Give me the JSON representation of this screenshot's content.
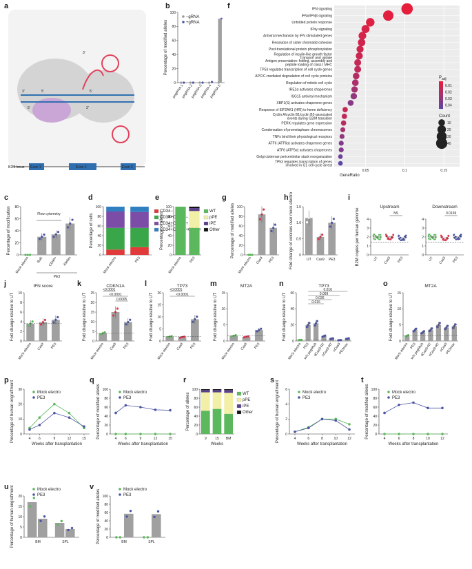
{
  "panel_letters": [
    "a",
    "b",
    "c",
    "d",
    "e",
    "f",
    "g",
    "h",
    "i",
    "j",
    "k",
    "l",
    "m",
    "n",
    "o",
    "p",
    "q",
    "r",
    "s",
    "t",
    "u",
    "v"
  ],
  "colors": {
    "mock": "#5cb85c",
    "pe3": "#4b55a3",
    "cas9": "#d9344b",
    "bar": "#a0a0a0",
    "wt": "#5cb85c",
    "ppe": "#f2f0a6",
    "ipe": "#5b3f8c",
    "other": "#111111",
    "cd34neg": "#e03a3a",
    "cd34133neg": "#3aa64a",
    "cd34133": "#7b4da6",
    "cd34133_90": "#2f7fc1"
  },
  "diagram_a": {
    "locus_label": "B2M locus",
    "exons": [
      "Exon 1",
      "Exon 2",
      "Exon 3"
    ],
    "strand_labels": [
      "3'",
      "5'",
      "3'",
      "5'",
      "3'",
      "5'"
    ]
  },
  "chart_data": [
    {
      "id": "b",
      "type": "scatter",
      "ylabel": "Percentage of modified alleles",
      "categories": [
        "pegRNA 1",
        "pegRNA 2",
        "pegRNA 3",
        "pegRNA 4",
        "pegRNA 5"
      ],
      "series": [
        {
          "name": "–gRNA",
          "values": [
            0,
            0,
            0,
            0,
            0
          ]
        },
        {
          "name": "+gRNA",
          "values": [
            0,
            0,
            0,
            1,
            91
          ]
        }
      ],
      "yticks": [
        0,
        20,
        40,
        60,
        80,
        100
      ],
      "ylim": [
        0,
        100
      ],
      "legend": "top-left"
    },
    {
      "id": "c",
      "type": "bar",
      "ylabel": "Percentage of modification",
      "categories": [
        "Mock electro",
        "Bulk",
        "CD90+",
        "Alleles"
      ],
      "values": [
        0,
        30,
        34,
        52
      ],
      "ylim": [
        0,
        80
      ],
      "yticks": [
        0,
        20,
        40,
        60,
        80
      ],
      "group_label": "PE3",
      "annotation": "Flow cytometry"
    },
    {
      "id": "d",
      "type": "bar",
      "stacked": true,
      "ylabel": "Percentage of cells",
      "categories": [
        "Mock electro",
        "PE3"
      ],
      "series": [
        {
          "name": "CD34−",
          "values": [
            11,
            16
          ]
        },
        {
          "name": "CD34+CD133−",
          "values": [
            45,
            40
          ]
        },
        {
          "name": "CD34+CD133+",
          "values": [
            34,
            33
          ]
        },
        {
          "name": "CD34+CD133+CD90+",
          "values": [
            10,
            11
          ]
        }
      ],
      "ylim": [
        0,
        100
      ],
      "yticks": [
        0,
        20,
        40,
        60,
        80,
        100
      ]
    },
    {
      "id": "e",
      "type": "bar",
      "stacked": true,
      "ylabel": "Percentage of alleles",
      "categories": [
        "Mock electro",
        "PE3"
      ],
      "series": [
        {
          "name": "WT",
          "values": [
            100,
            56
          ]
        },
        {
          "name": "pPE",
          "values": [
            0,
            35
          ]
        },
        {
          "name": "iPE",
          "values": [
            0,
            6
          ]
        },
        {
          "name": "Other",
          "values": [
            0,
            3
          ]
        }
      ],
      "ylim": [
        0,
        100
      ],
      "yticks": [
        0,
        20,
        40,
        60,
        80,
        100
      ]
    },
    {
      "id": "f",
      "type": "scatter",
      "xlabel": "GeneRatio",
      "xticks": [
        0.05,
        0.1,
        0.15
      ],
      "xlim": [
        0.01,
        0.17
      ],
      "terms": [
        "IFN signaling",
        "IFNα/IFNβ signaling",
        "Unfolded protein response",
        "IFNγ signaling",
        "Antiviral mechanism by IFN stimulated genes",
        "Resolution of sister chromatid cohesion",
        "Post-translational protein phosphorylation",
        "Regulation of insulin-like growth factor\nTransport and uptake",
        "Antigen presentation: folding, assembly and\npeptide loading of class I MHC",
        "TP53 regulates transcription of cell cycle genes",
        "APC/C-mediated degradation of cell cycle proteins",
        "Regulation of mitotic cell cycle",
        "IRE1α activates chaperones",
        "ISG15 antiviral mechanism",
        "XBP1(S) activates chaperone genes",
        "Response of EIF2AK1 (HRI) to heme deficiency",
        "Cyclin A/cyclin B1/cyclin B2-associated\nevents during G2/M transition",
        "PERK regulates gene expression",
        "Condensation of prometaphase chromosomes",
        "TNFs bind their physiological receptors",
        "ATF6 (ATF6α) activates chaperone genes",
        "ATF6 (ATF6α) activates chaperones",
        "Golgi cisternae pericentriolar stack reorganization",
        "TP53 regulates transcription of genes\ninvolved in G1 cell cycle arrest"
      ],
      "gene_ratio": [
        0.103,
        0.079,
        0.056,
        0.05,
        0.046,
        0.045,
        0.043,
        0.042,
        0.04,
        0.04,
        0.038,
        0.037,
        0.036,
        0.035,
        0.031,
        0.024,
        0.023,
        0.022,
        0.021,
        0.02,
        0.019,
        0.019,
        0.018,
        0.018
      ],
      "count": [
        42,
        33,
        20,
        17,
        15,
        14,
        12,
        12,
        11,
        11,
        10,
        10,
        9,
        9,
        7,
        5,
        5,
        5,
        4,
        4,
        4,
        4,
        3,
        3
      ],
      "padj": [
        0.001,
        0.002,
        0.003,
        0.005,
        0.006,
        0.007,
        0.008,
        0.009,
        0.01,
        0.012,
        0.015,
        0.018,
        0.02,
        0.025,
        0.028,
        0.01,
        0.012,
        0.015,
        0.02,
        0.025,
        0.03,
        0.03,
        0.035,
        0.04
      ],
      "color_legend": {
        "title": "P",
        "subscript": "adj",
        "ticks": [
          "0.01",
          "0.02",
          "0.03",
          "0.04"
        ]
      },
      "size_legend": {
        "title": "Count",
        "ticks": [
          "10",
          "20",
          "30",
          "40"
        ]
      }
    },
    {
      "id": "g",
      "type": "bar",
      "ylabel": "Percentage of modified alleles",
      "categories": [
        "Mock electro",
        "Cas9",
        "PE3"
      ],
      "values": [
        0,
        84,
        56
      ],
      "ylim": [
        0,
        100
      ],
      "yticks": [
        0,
        20,
        40,
        60,
        80,
        100
      ]
    },
    {
      "id": "h",
      "type": "bar",
      "ylabel": "Fold change of colonies over mock electro",
      "categories": [
        "UT",
        "Cas9",
        "PE3"
      ],
      "values": [
        1.15,
        0.56,
        1.0
      ],
      "ylim": [
        0,
        1.5
      ],
      "yticks": [
        "0",
        "0.5",
        "1.0",
        "1.5"
      ]
    },
    {
      "id": "i",
      "type": "scatter",
      "panels": [
        "Upstream",
        "Downstream"
      ],
      "ylabel": "B2M copies per human genome",
      "categories": [
        "UT",
        "Cas9",
        "PE3"
      ],
      "medians": [
        [
          2.0,
          2.0,
          1.9
        ],
        [
          2.0,
          1.9,
          2.0
        ]
      ],
      "ylim": [
        0,
        4
      ],
      "yticks": [
        0,
        1,
        2,
        3,
        4
      ],
      "comparisons": [
        "NS",
        "0.0169"
      ]
    },
    {
      "id": "j",
      "type": "bar",
      "title": "IFN score",
      "ylabel": "Fold change relative to UT",
      "categories": [
        "Mock electro",
        "Cas9",
        "PE3"
      ],
      "values": [
        3.6,
        3.9,
        4.4
      ],
      "ylim": [
        0,
        10
      ],
      "yticks": [
        0,
        2,
        4,
        6,
        8,
        10
      ]
    },
    {
      "id": "k",
      "type": "bar",
      "title": "CDKN1A",
      "ylabel": "Fold change relative to UT",
      "categories": [
        "Mock electro",
        "Cas9",
        "PE3"
      ],
      "values": [
        4.0,
        15.0,
        9.8
      ],
      "ylim": [
        0,
        25
      ],
      "yticks": [
        0,
        5,
        10,
        15,
        20,
        25
      ],
      "pvalues": [
        "<0.0001",
        "<0.0001",
        "0.0005"
      ]
    },
    {
      "id": "l",
      "type": "bar",
      "title": "TP73",
      "ylabel": "Fold change relative to UT",
      "categories": [
        "Mock electro",
        "Cas9",
        "PE3"
      ],
      "values": [
        1.8,
        1.6,
        9.0
      ],
      "ylim": [
        0,
        20
      ],
      "yticks": [
        0,
        5,
        10,
        15,
        20
      ],
      "pvalues": [
        "<0.0001",
        "<0.0001"
      ]
    },
    {
      "id": "m",
      "type": "bar",
      "title": "MT2A",
      "ylabel": "Fold change relative to UT",
      "categories": [
        "Mock electro",
        "Cas9",
        "PE3"
      ],
      "values": [
        1.6,
        1.3,
        3.4
      ],
      "ylim": [
        0,
        15
      ],
      "yticks": [
        0,
        5,
        10,
        15
      ]
    },
    {
      "id": "n",
      "type": "bar",
      "title": "TP73",
      "ylabel": "Fold change relative to UT",
      "categories": [
        "Mock electro",
        "PE3",
        "w/o pegRNA",
        "dCas9-RT",
        "nCas9-RT",
        "nCas9",
        "PE3max"
      ],
      "values": [
        1.2,
        20,
        22,
        6,
        3,
        1,
        3
      ],
      "ylim": [
        0,
        60
      ],
      "yticks": [
        0,
        20,
        40,
        60
      ],
      "pvalues": [
        "0.016",
        "0.009",
        "0.026",
        "0.016"
      ]
    },
    {
      "id": "o",
      "type": "bar",
      "title": "MT2A",
      "ylabel": "Fold change relative to UT",
      "categories": [
        "Mock electro",
        "PE3",
        "w/o pegRNA",
        "dCas9-RT",
        "nCas9-RT",
        "nCas9",
        "PE3max"
      ],
      "values": [
        1.6,
        3.4,
        2.7,
        3.5,
        5.0,
        4.2,
        4.6
      ],
      "ylim": [
        0,
        15
      ],
      "yticks": [
        0,
        5,
        10,
        15
      ]
    },
    {
      "id": "p",
      "type": "line",
      "ylabel": "Percentage of human engraftment",
      "xlabel": "Weeks after transplantation",
      "x": [
        4,
        6,
        9,
        12,
        15
      ],
      "series": [
        {
          "name": "Mock electro",
          "values": [
            4,
            11,
            20,
            14,
            4
          ]
        },
        {
          "name": "PE3",
          "values": [
            3,
            6,
            14,
            11,
            5
          ]
        }
      ],
      "ylim": [
        0,
        30
      ],
      "yticks": [
        0,
        10,
        20,
        30
      ],
      "xticks": [
        4,
        6,
        9,
        12,
        15
      ]
    },
    {
      "id": "q",
      "type": "line",
      "ylabel": "Percentage of modified alleles",
      "xlabel": "Weeks after transplantation",
      "x": [
        4,
        6,
        9,
        12,
        15
      ],
      "series": [
        {
          "name": "Mock electro",
          "values": [
            0,
            0,
            0,
            0,
            0
          ]
        },
        {
          "name": "PE3",
          "values": [
            47,
            64,
            60,
            54,
            53
          ]
        }
      ],
      "ylim": [
        0,
        100
      ],
      "yticks": [
        0,
        20,
        40,
        60,
        80,
        100
      ],
      "xticks": [
        4,
        6,
        9,
        12,
        15
      ]
    },
    {
      "id": "r",
      "type": "bar",
      "stacked": true,
      "ylabel": "Percentage of alleles",
      "xlabel": "Weeks",
      "categories": [
        "9",
        "15",
        "BM"
      ],
      "series": [
        {
          "name": "WT",
          "values": [
            52,
            56,
            45
          ]
        },
        {
          "name": "pPE",
          "values": [
            41,
            37,
            47
          ]
        },
        {
          "name": "iPE",
          "values": [
            5,
            5,
            6
          ]
        },
        {
          "name": "Other",
          "values": [
            2,
            2,
            2
          ]
        }
      ],
      "ylim": [
        0,
        100
      ],
      "yticks": [
        0,
        20,
        40,
        60,
        80,
        100
      ]
    },
    {
      "id": "s",
      "type": "line",
      "ylabel": "Percentage of human engraftment",
      "xlabel": "Weeks after transplantation",
      "x": [
        4,
        6,
        8,
        10,
        12
      ],
      "series": [
        {
          "name": "Mock electro",
          "values": [
            0.3,
            0.9,
            2.0,
            2.0,
            1.3
          ]
        },
        {
          "name": "PE3",
          "values": [
            0.3,
            0.8,
            2.0,
            1.8,
            0.6
          ]
        }
      ],
      "ylim": [
        0,
        6
      ],
      "yticks": [
        0,
        2,
        4,
        6
      ],
      "xticks": [
        4,
        6,
        8,
        10,
        12
      ]
    },
    {
      "id": "t",
      "type": "line",
      "ylabel": "Percentage of modified alleles",
      "xlabel": "Weeks after transplantation",
      "x": [
        4,
        6,
        8,
        10,
        12
      ],
      "series": [
        {
          "name": "Mock electro",
          "values": [
            0,
            0,
            0,
            0,
            0
          ]
        },
        {
          "name": "PE3",
          "values": [
            47,
            65,
            70,
            58,
            58
          ]
        }
      ],
      "ylim": [
        0,
        100
      ],
      "yticks": [
        0,
        20,
        40,
        60,
        80,
        100
      ],
      "xticks": [
        4,
        6,
        8,
        10,
        12
      ]
    },
    {
      "id": "u",
      "type": "bar",
      "ylabel": "Percentage of human engraftment",
      "categories": [
        "BM",
        "SPL"
      ],
      "series": [
        {
          "name": "Mock electro",
          "values": [
            17,
            7
          ]
        },
        {
          "name": "PE3",
          "values": [
            9,
            4
          ]
        }
      ],
      "ylim": [
        0,
        20
      ],
      "yticks": [
        0,
        5,
        10,
        15,
        20
      ]
    },
    {
      "id": "v",
      "type": "bar",
      "ylabel": "Percentage of modified alleles",
      "categories": [
        "BM",
        "SPL"
      ],
      "series": [
        {
          "name": "Mock electro",
          "values": [
            0,
            0
          ]
        },
        {
          "name": "PE3",
          "values": [
            57,
            56
          ]
        }
      ],
      "ylim": [
        0,
        100
      ],
      "yticks": [
        0,
        20,
        40,
        60,
        80,
        100
      ]
    }
  ]
}
